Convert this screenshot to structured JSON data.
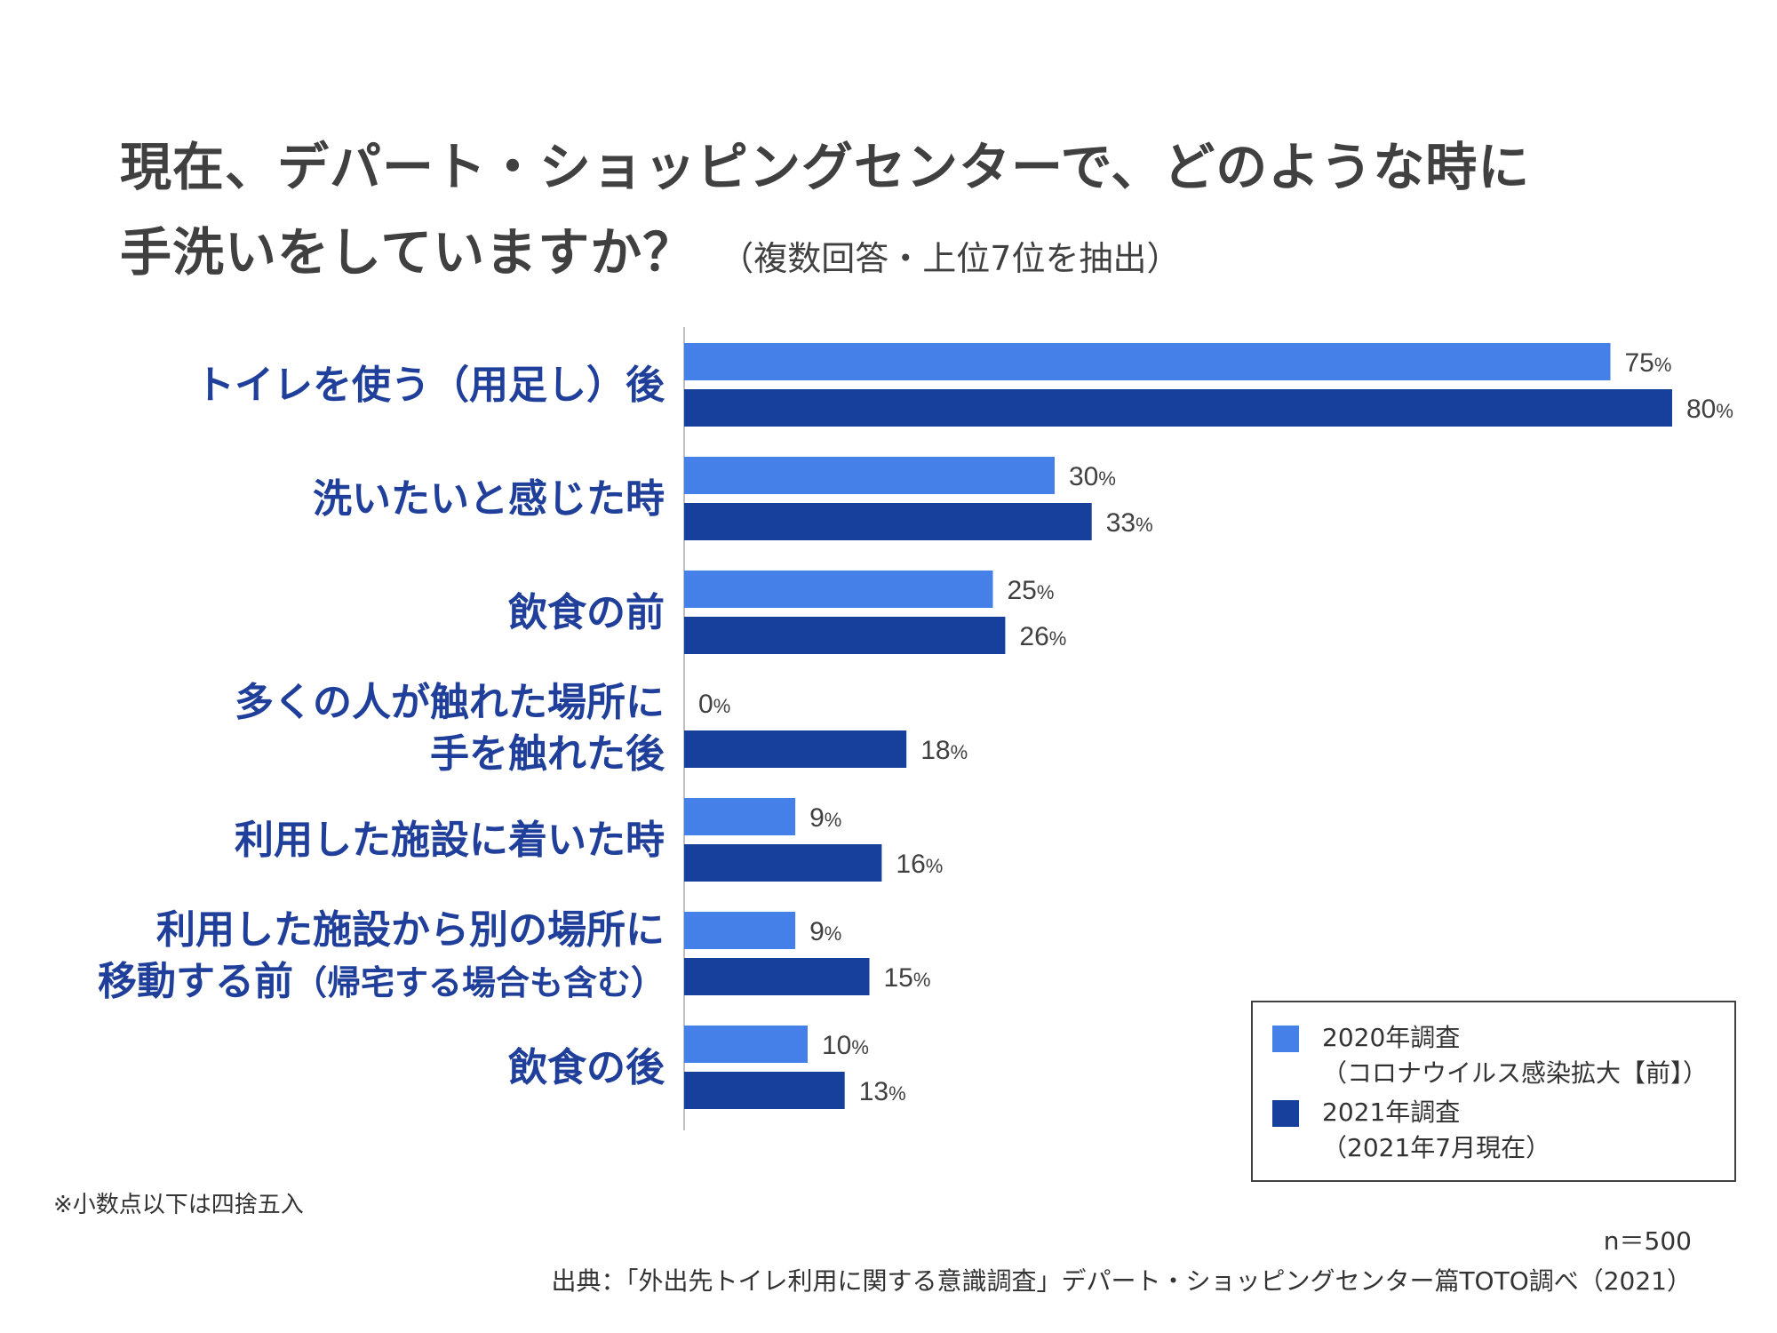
{
  "title": {
    "line1": "現在、デパート・ショッピングセンターで、どのような時に",
    "line2": "手洗いをしていますか？",
    "subtitle": "（複数回答・上位7位を抽出）"
  },
  "colors": {
    "series2020": "#4580E8",
    "series2021": "#173F9C",
    "category_label": "#1F3F9A",
    "axis": "#BFBFBF"
  },
  "chart_data": {
    "type": "bar",
    "orientation": "horizontal",
    "categories": [
      [
        "トイレを使う（用足し）後"
      ],
      [
        "洗いたいと感じた時"
      ],
      [
        "飲食の前"
      ],
      [
        "多くの人が触れた場所に",
        "手を触れた後"
      ],
      [
        "利用した施設に着いた時"
      ],
      [
        "利用した施設から別の場所に",
        "移動する前（帰宅する場合も含む）"
      ],
      [
        "飲食の後"
      ]
    ],
    "series": [
      {
        "name": "2020年調査（コロナウイルス感染拡大【前】）",
        "values": [
          75,
          30,
          25,
          0,
          9,
          9,
          10
        ]
      },
      {
        "name": "2021年調査（2021年7月現在）",
        "values": [
          80,
          33,
          26,
          18,
          16,
          15,
          13
        ]
      }
    ],
    "value_suffix": "%",
    "xlim": [
      0,
      80
    ],
    "grid": false,
    "legend_position": "bottom-right"
  },
  "legend": {
    "item1_line1": "2020年調査",
    "item1_line2": "（コロナウイルス感染拡大【前】）",
    "item2_line1": "2021年調査",
    "item2_line2": "（2021年7月現在）"
  },
  "footer": {
    "note": "※小数点以下は四捨五入",
    "n": "n＝500",
    "source": "出典：「外出先トイレ利用に関する意識調査」デパート・ショッピングセンター篇TOTO調べ（2021）"
  }
}
